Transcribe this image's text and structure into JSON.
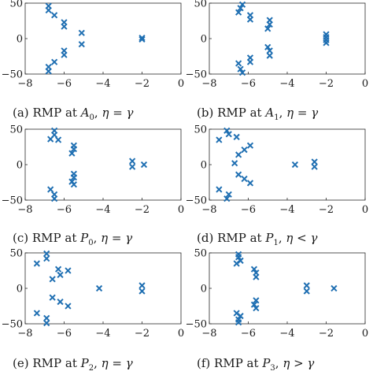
{
  "chart_data": [
    {
      "type": "scatter",
      "caption": {
        "tag": "(a)",
        "text": "RMP at",
        "sym": "A",
        "sub": "0",
        "cond": "η = γ"
      },
      "xlim": [
        -8,
        0
      ],
      "ylim": [
        -50,
        50
      ],
      "xticks": [
        "−8",
        "−6",
        "−4",
        "−2",
        "0"
      ],
      "yticks": [
        "50",
        "0",
        "−50"
      ],
      "marker_color": "#1f6fb2",
      "points": [
        [
          -6.8,
          46
        ],
        [
          -6.8,
          40
        ],
        [
          -6.5,
          33
        ],
        [
          -6.0,
          23
        ],
        [
          -6.0,
          17
        ],
        [
          -5.1,
          8
        ],
        [
          -5.1,
          -8
        ],
        [
          -6.0,
          -17
        ],
        [
          -6.0,
          -23
        ],
        [
          -6.5,
          -33
        ],
        [
          -6.8,
          -40
        ],
        [
          -6.8,
          -46
        ],
        [
          -2.0,
          1
        ],
        [
          -2.0,
          -1
        ]
      ]
    },
    {
      "type": "scatter",
      "caption": {
        "tag": "(b)",
        "text": "RMP at",
        "sym": "A",
        "sub": "1",
        "cond": "η = γ"
      },
      "xlim": [
        -8,
        0
      ],
      "ylim": [
        -50,
        50
      ],
      "xticks": [
        "−8",
        "−6",
        "−4",
        "−2",
        "0"
      ],
      "yticks": [
        "50",
        "0",
        "−50"
      ],
      "marker_color": "#1f6fb2",
      "points": [
        [
          -6.3,
          48
        ],
        [
          -6.4,
          43
        ],
        [
          -6.5,
          37
        ],
        [
          -5.9,
          33
        ],
        [
          -5.9,
          27
        ],
        [
          -4.9,
          26
        ],
        [
          -4.9,
          20
        ],
        [
          -5.0,
          14
        ],
        [
          -5.0,
          -12
        ],
        [
          -4.9,
          -17
        ],
        [
          -4.9,
          -24
        ],
        [
          -5.9,
          -27
        ],
        [
          -5.9,
          -33
        ],
        [
          -6.5,
          -35
        ],
        [
          -6.4,
          -43
        ],
        [
          -6.3,
          -48
        ],
        [
          -2.0,
          6
        ],
        [
          -2.0,
          2
        ],
        [
          -2.0,
          -2
        ],
        [
          -2.0,
          -6
        ]
      ]
    },
    {
      "type": "scatter",
      "caption": {
        "tag": "(c)",
        "text": "RMP at",
        "sym": "P",
        "sub": "0",
        "cond": "η = γ"
      },
      "xlim": [
        -8,
        0
      ],
      "ylim": [
        -50,
        50
      ],
      "xticks": [
        "−8",
        "−6",
        "−4",
        "−2",
        "0"
      ],
      "yticks": [
        "50",
        "0",
        "−50"
      ],
      "marker_color": "#1f6fb2",
      "points": [
        [
          -6.5,
          48
        ],
        [
          -6.5,
          42
        ],
        [
          -6.7,
          36
        ],
        [
          -6.3,
          35
        ],
        [
          -5.5,
          27
        ],
        [
          -5.5,
          22
        ],
        [
          -5.6,
          16
        ],
        [
          -5.5,
          -13
        ],
        [
          -5.5,
          -18
        ],
        [
          -5.6,
          -24
        ],
        [
          -5.5,
          -28
        ],
        [
          -6.7,
          -35
        ],
        [
          -6.5,
          -42
        ],
        [
          -6.5,
          -48
        ],
        [
          -2.5,
          5
        ],
        [
          -2.5,
          -3
        ],
        [
          -1.9,
          0
        ]
      ]
    },
    {
      "type": "scatter",
      "caption": {
        "tag": "(d)",
        "text": "RMP at",
        "sym": "P",
        "sub": "1",
        "cond": "η < γ"
      },
      "xlim": [
        -8,
        0
      ],
      "ylim": [
        -50,
        50
      ],
      "xticks": [
        "−8",
        "−6",
        "−4",
        "−2",
        "0"
      ],
      "yticks": [
        "50",
        "0",
        "−50"
      ],
      "marker_color": "#1f6fb2",
      "points": [
        [
          -7.1,
          48
        ],
        [
          -7.0,
          43
        ],
        [
          -7.5,
          35
        ],
        [
          -6.6,
          39
        ],
        [
          -5.9,
          27
        ],
        [
          -6.2,
          21
        ],
        [
          -6.5,
          14
        ],
        [
          -6.7,
          2
        ],
        [
          -6.5,
          -14
        ],
        [
          -6.2,
          -20
        ],
        [
          -5.9,
          -26
        ],
        [
          -7.5,
          -35
        ],
        [
          -7.0,
          -42
        ],
        [
          -7.1,
          -48
        ],
        [
          -3.6,
          0
        ],
        [
          -2.6,
          4
        ],
        [
          -2.6,
          -3
        ]
      ]
    },
    {
      "type": "scatter",
      "caption": {
        "tag": "(e)",
        "text": "RMP at",
        "sym": "P",
        "sub": "2",
        "cond": "η = γ"
      },
      "xlim": [
        -8,
        0
      ],
      "ylim": [
        -50,
        50
      ],
      "xticks": [
        "−8",
        "−6",
        "−4",
        "−2",
        "0"
      ],
      "yticks": [
        "50",
        "0",
        "−50"
      ],
      "marker_color": "#1f6fb2",
      "points": [
        [
          -6.9,
          49
        ],
        [
          -6.9,
          42
        ],
        [
          -7.4,
          35
        ],
        [
          -6.3,
          27
        ],
        [
          -5.8,
          25
        ],
        [
          -6.2,
          19
        ],
        [
          -6.6,
          13
        ],
        [
          -4.2,
          0
        ],
        [
          -6.6,
          -13
        ],
        [
          -6.2,
          -19
        ],
        [
          -5.8,
          -25
        ],
        [
          -7.4,
          -35
        ],
        [
          -6.9,
          -42
        ],
        [
          -6.9,
          -49
        ],
        [
          -2.0,
          4
        ],
        [
          -2.0,
          -4
        ]
      ]
    },
    {
      "type": "scatter",
      "caption": {
        "tag": "(f)",
        "text": "RMP at",
        "sym": "P",
        "sub": "3",
        "cond": "η > γ"
      },
      "xlim": [
        -8,
        0
      ],
      "ylim": [
        -50,
        50
      ],
      "xticks": [
        "−8",
        "−6",
        "−4",
        "−2",
        "0"
      ],
      "yticks": [
        "50",
        "0",
        "−50"
      ],
      "marker_color": "#1f6fb2",
      "points": [
        [
          -6.5,
          48
        ],
        [
          -6.5,
          44
        ],
        [
          -6.4,
          39
        ],
        [
          -6.6,
          35
        ],
        [
          -5.7,
          27
        ],
        [
          -5.6,
          22
        ],
        [
          -5.6,
          16
        ],
        [
          -5.6,
          -17
        ],
        [
          -5.7,
          -23
        ],
        [
          -5.6,
          -28
        ],
        [
          -6.6,
          -35
        ],
        [
          -6.4,
          -39
        ],
        [
          -6.5,
          -44
        ],
        [
          -6.5,
          -48
        ],
        [
          -3.0,
          4
        ],
        [
          -3.0,
          -4
        ],
        [
          -1.6,
          0
        ]
      ]
    }
  ]
}
